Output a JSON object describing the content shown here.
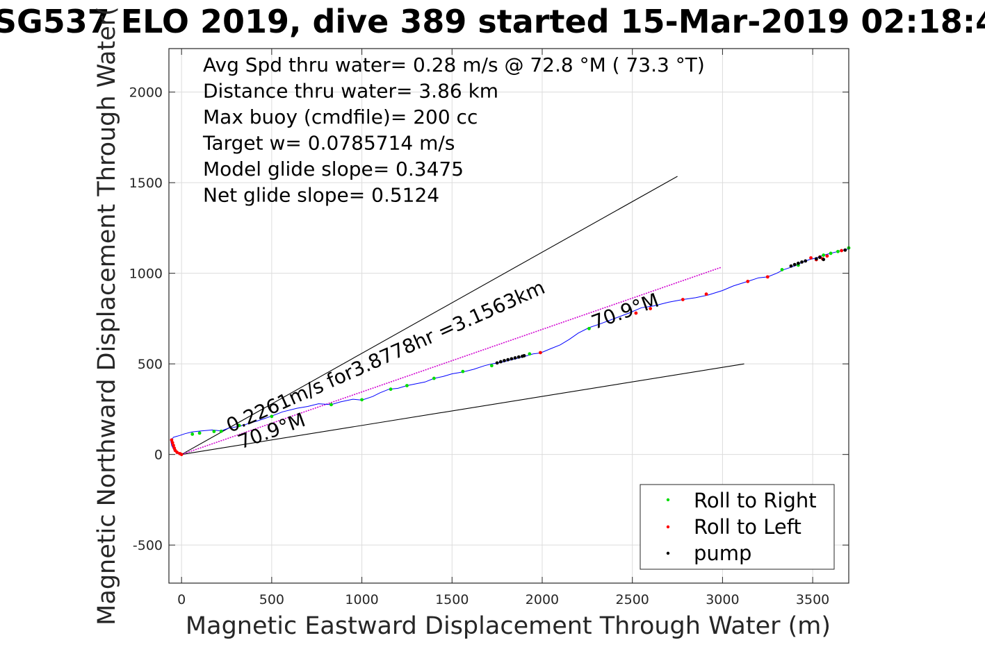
{
  "chart_data": {
    "type": "line",
    "title": "SG537 ELO 2019, dive 389 started 15-Mar-2019 02:18:4",
    "xlabel": "Magnetic Eastward Displacement Through Water (m)",
    "ylabel": "Magnetic Northward Displacement Through Water(",
    "xlim": [
      -70,
      3700
    ],
    "ylim": [
      -710,
      2240
    ],
    "xticks": [
      0,
      500,
      1000,
      1500,
      2000,
      2500,
      3000,
      3500
    ],
    "yticks": [
      -500,
      0,
      500,
      1000,
      1500,
      2000
    ],
    "xtick_labels": [
      "0",
      "500",
      "1000",
      "1500",
      "2000",
      "2500",
      "3000",
      "3500"
    ],
    "ytick_labels": [
      "-500",
      "0",
      "500",
      "1000",
      "1500",
      "2000"
    ],
    "grid": true,
    "info_lines": [
      "Avg Spd thru water=  0.28 m/s @  72.8 °M ( 73.3 °T)",
      "Distance thru water=  3.86 km",
      "Max buoy (cmdfile)= 200 cc",
      "Target w= 0.0785714 m/s",
      "Model glide slope= 0.3475",
      "Net glide slope= 0.5124"
    ],
    "annotations": [
      {
        "text": "0.2261m/s for3.8778hr =3.1563km",
        "x": 270,
        "y": 120,
        "angle_deg": 24
      },
      {
        "text": "70.9°M",
        "x": 330,
        "y": 30,
        "angle_deg": 20
      },
      {
        "text": "70.9°M",
        "x": 2290,
        "y": 690,
        "angle_deg": 20
      }
    ],
    "envelope_lines": [
      {
        "x": [
          0,
          2750
        ],
        "y": [
          0,
          1535
        ],
        "color": "#000000"
      },
      {
        "x": [
          0,
          3120
        ],
        "y": [
          0,
          500
        ],
        "color": "#000000"
      }
    ],
    "current_line": {
      "x": [
        0,
        2990
      ],
      "y": [
        0,
        1032
      ],
      "color": "#d000d0"
    },
    "track": {
      "name": "track",
      "color": "#0000ff",
      "x": [
        0,
        -20,
        -40,
        -55,
        -60,
        -45,
        -10,
        20,
        60,
        110,
        170,
        220,
        260,
        320,
        370,
        420,
        480,
        520,
        560,
        640,
        700,
        760,
        830,
        880,
        950,
        1000,
        1060,
        1100,
        1150,
        1200,
        1250,
        1300,
        1350,
        1400,
        1450,
        1500,
        1560,
        1620,
        1680,
        1720,
        1780,
        1840,
        1900,
        1950,
        1990,
        2050,
        2100,
        2150,
        2200,
        2260,
        2320,
        2400,
        2480,
        2550,
        2620,
        2700,
        2780,
        2850,
        2920,
        3000,
        3060,
        3140,
        3200,
        3250,
        3300,
        3340,
        3400,
        3440,
        3480,
        3520,
        3560,
        3600,
        3640,
        3700
      ],
      "y": [
        0,
        5,
        20,
        50,
        75,
        95,
        105,
        115,
        125,
        130,
        135,
        130,
        145,
        155,
        170,
        185,
        205,
        220,
        235,
        255,
        265,
        280,
        275,
        290,
        305,
        300,
        320,
        340,
        360,
        365,
        380,
        390,
        400,
        420,
        430,
        445,
        455,
        470,
        490,
        500,
        510,
        525,
        540,
        555,
        560,
        585,
        605,
        635,
        670,
        700,
        720,
        750,
        780,
        810,
        820,
        840,
        855,
        865,
        880,
        905,
        930,
        955,
        975,
        980,
        1000,
        1020,
        1040,
        1060,
        1075,
        1085,
        1100,
        1110,
        1120,
        1135
      ]
    },
    "series": [
      {
        "name": "Roll to Right",
        "color": "#00dd00",
        "x": [
          60,
          100,
          180,
          220,
          320,
          500,
          830,
          1000,
          1160,
          1250,
          1400,
          1560,
          1720,
          1930,
          2260,
          3330,
          3420,
          3560,
          3600,
          3640,
          3700
        ],
        "y": [
          112,
          118,
          127,
          128,
          160,
          210,
          275,
          302,
          360,
          380,
          420,
          458,
          490,
          555,
          695,
          1020,
          1045,
          1100,
          1110,
          1120,
          1140
        ]
      },
      {
        "name": "Roll to Left",
        "color": "#ff0000",
        "x": [
          -55,
          -50,
          -45,
          -40,
          -35,
          -25,
          -10,
          0,
          1990,
          2520,
          2600,
          2780,
          2910,
          3140,
          3250,
          3490,
          3520,
          3540,
          3555,
          3580,
          3660
        ],
        "y": [
          80,
          65,
          50,
          35,
          22,
          12,
          5,
          0,
          562,
          780,
          805,
          855,
          885,
          955,
          980,
          1085,
          1075,
          1090,
          1080,
          1095,
          1125
        ]
      },
      {
        "name": "pump",
        "color": "#000000",
        "x": [
          1750,
          1770,
          1790,
          1810,
          1830,
          1850,
          1870,
          1890,
          1900,
          3380,
          3400,
          3420,
          3440,
          3460,
          3520,
          3540,
          3560,
          3680
        ],
        "y": [
          505,
          512,
          518,
          523,
          528,
          533,
          538,
          542,
          545,
          1040,
          1048,
          1055,
          1062,
          1068,
          1080,
          1088,
          1076,
          1128
        ]
      }
    ],
    "legend": {
      "placement": "bottom-right",
      "entries": [
        "Roll to Right",
        "Roll to Left",
        "pump"
      ]
    }
  }
}
